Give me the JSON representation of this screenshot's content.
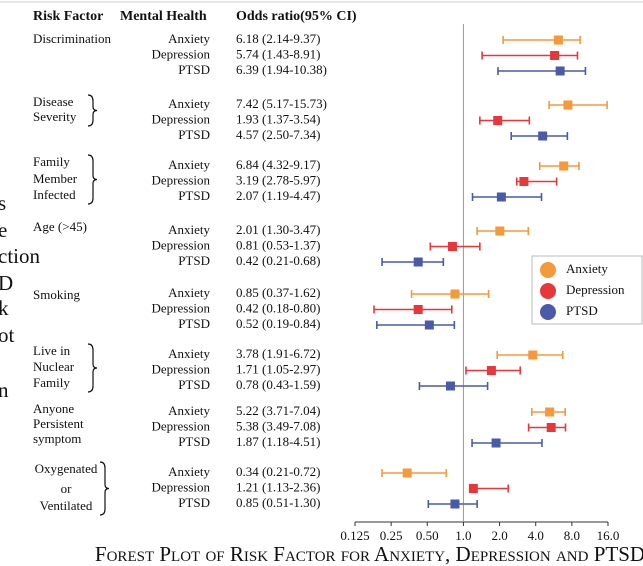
{
  "chart_data": {
    "type": "forest",
    "title": "Forest Plot of Risk Factor for Anxiety, Depression and PTSD",
    "headers": [
      "Risk Factor",
      "Mental Health",
      "Odds ratio(95% CI)"
    ],
    "categories": [
      [
        "Discrimination"
      ],
      [
        "Disease",
        "Severity"
      ],
      [
        "Family",
        "Member",
        "Infected"
      ],
      [
        "Age (>45)"
      ],
      [
        "Smoking"
      ],
      [
        "Live in",
        "Nuclear",
        "Family"
      ],
      [
        "Anyone",
        "Persistent",
        "symptom"
      ],
      [
        "Oxygenated",
        "or",
        "Ventilated"
      ]
    ],
    "series": [
      {
        "name": "Anxiety",
        "color": "#f5993a",
        "values": [
          6.18,
          7.42,
          6.84,
          2.01,
          0.85,
          3.78,
          5.22,
          0.34
        ],
        "lower": [
          2.14,
          5.17,
          4.32,
          1.3,
          0.37,
          1.91,
          3.71,
          0.21
        ],
        "upper": [
          9.37,
          15.73,
          9.17,
          3.47,
          1.62,
          6.72,
          7.04,
          0.72
        ],
        "value_labels": [
          "6.18 (2.14-9.37)",
          "7.42 (5.17-15.73)",
          "6.84 (4.32-9.17)",
          "2.01 (1.30-3.47)",
          "0.85 (0.37-1.62)",
          "3.78 (1.91-6.72)",
          "5.22 (3.71-7.04)",
          "0.34 (0.21-0.72)"
        ]
      },
      {
        "name": "Depression",
        "color": "#e8373a",
        "values": [
          5.74,
          1.93,
          3.19,
          0.81,
          0.42,
          1.71,
          5.38,
          1.21
        ],
        "lower": [
          1.43,
          1.37,
          2.78,
          0.53,
          0.18,
          1.05,
          3.49,
          1.13
        ],
        "upper": [
          8.91,
          3.54,
          5.97,
          1.37,
          0.8,
          2.97,
          7.08,
          2.36
        ],
        "value_labels": [
          "5.74 (1.43-8.91)",
          "1.93 (1.37-3.54)",
          "3.19 (2.78-5.97)",
          "0.81 (0.53-1.37)",
          "0.42 (0.18-0.80)",
          "1.71 (1.05-2.97)",
          "5.38 (3.49-7.08)",
          "1.21 (1.13-2.36)"
        ]
      },
      {
        "name": "PTSD",
        "color": "#4a5aaa",
        "values": [
          6.39,
          4.57,
          2.07,
          0.42,
          0.52,
          0.78,
          1.87,
          0.85
        ],
        "lower": [
          1.94,
          2.5,
          1.19,
          0.21,
          0.19,
          0.43,
          1.18,
          0.51
        ],
        "upper": [
          10.38,
          7.34,
          4.47,
          0.68,
          0.84,
          1.59,
          4.51,
          1.3
        ],
        "value_labels": [
          "6.39 (1.94-10.38)",
          "4.57 (2.50-7.34)",
          "2.07 (1.19-4.47)",
          "0.42 (0.21-0.68)",
          "0.52 (0.19-0.84)",
          "0.78 (0.43-1.59)",
          "1.87 (1.18-4.51)",
          "0.85 (0.51-1.30)"
        ]
      }
    ],
    "xscale": "log",
    "xlim": [
      0.125,
      16
    ],
    "xticks": [
      0.125,
      0.25,
      {
        "value": 0.5,
        "label": "0.50"
      },
      {
        "value": 1,
        "label": "1.0"
      },
      {
        "value": 2,
        "label": "2.0"
      },
      {
        "value": 4,
        "label": "4.0"
      },
      {
        "value": 8,
        "label": "8.0"
      },
      {
        "value": 16,
        "label": "16.0"
      }
    ],
    "reference_line": 1,
    "legend": "right",
    "page_fragments": [
      "s",
      "e",
      "ction",
      "D",
      "k",
      "ot",
      "n"
    ]
  }
}
